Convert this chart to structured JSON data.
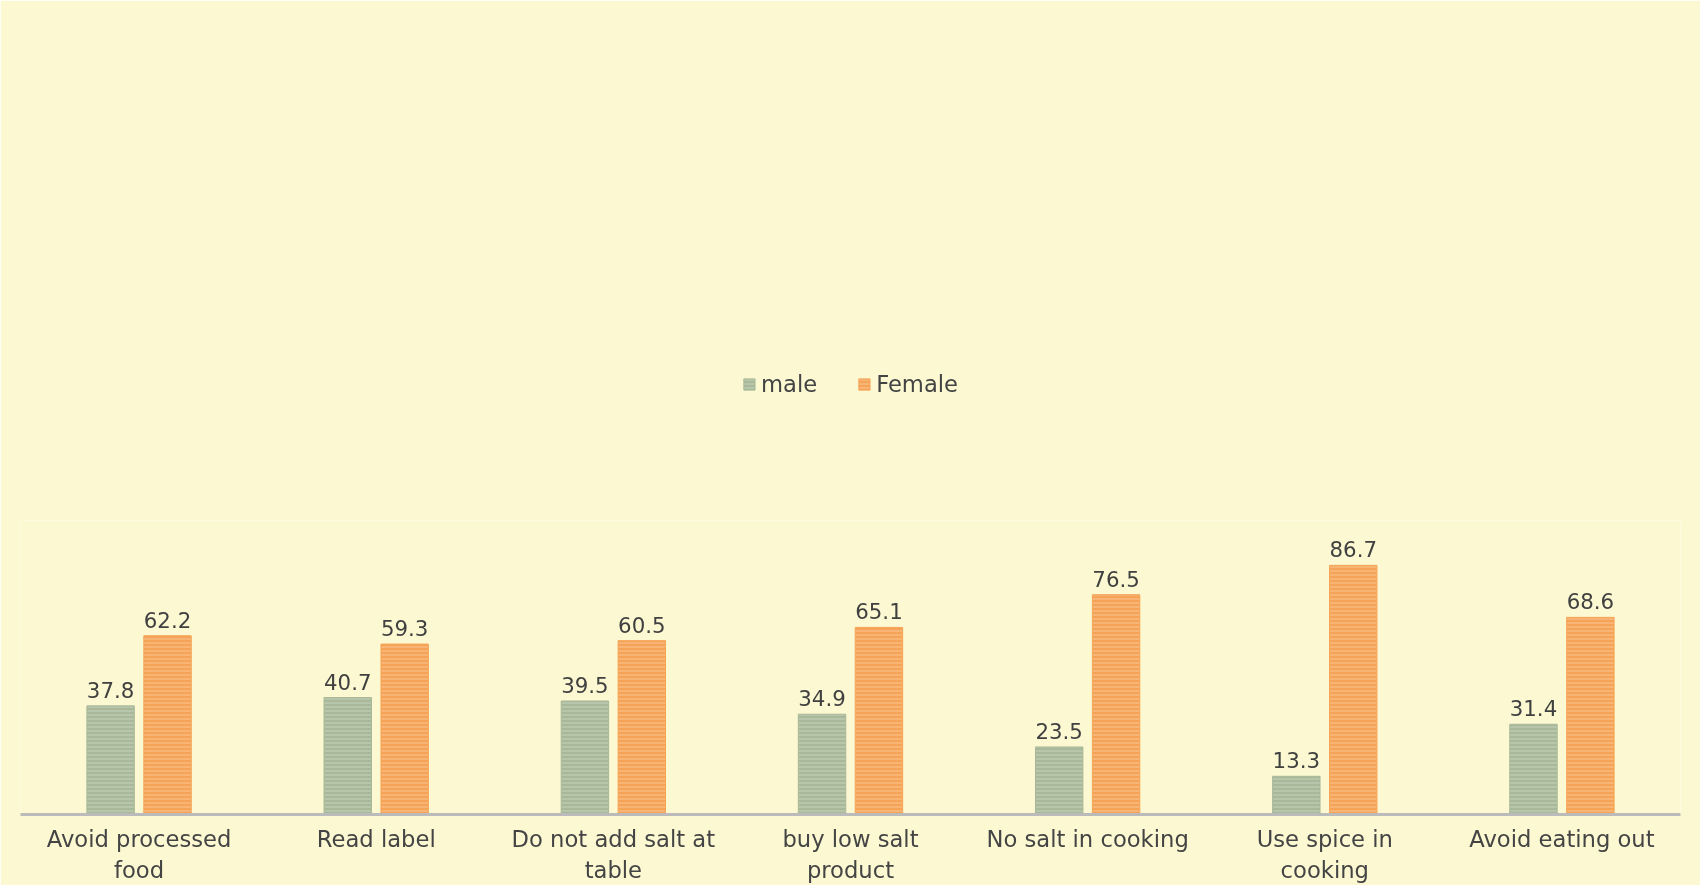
{
  "chart_data": {
    "type": "bar",
    "categories": [
      "Avoid processed food",
      "Read label",
      "Do not add salt at table",
      "buy low salt product",
      "No salt in cooking",
      "Use spice in cooking",
      "Avoid eating out"
    ],
    "series": [
      {
        "name": "male",
        "color": "#a8b898",
        "values": [
          37.8,
          40.7,
          39.5,
          34.9,
          23.5,
          13.3,
          31.4
        ]
      },
      {
        "name": "Female",
        "color": "#f5a457",
        "values": [
          62.2,
          59.3,
          60.5,
          65.1,
          76.5,
          86.7,
          68.6
        ]
      }
    ],
    "data_labels": true,
    "legend": "top",
    "grid": false
  }
}
